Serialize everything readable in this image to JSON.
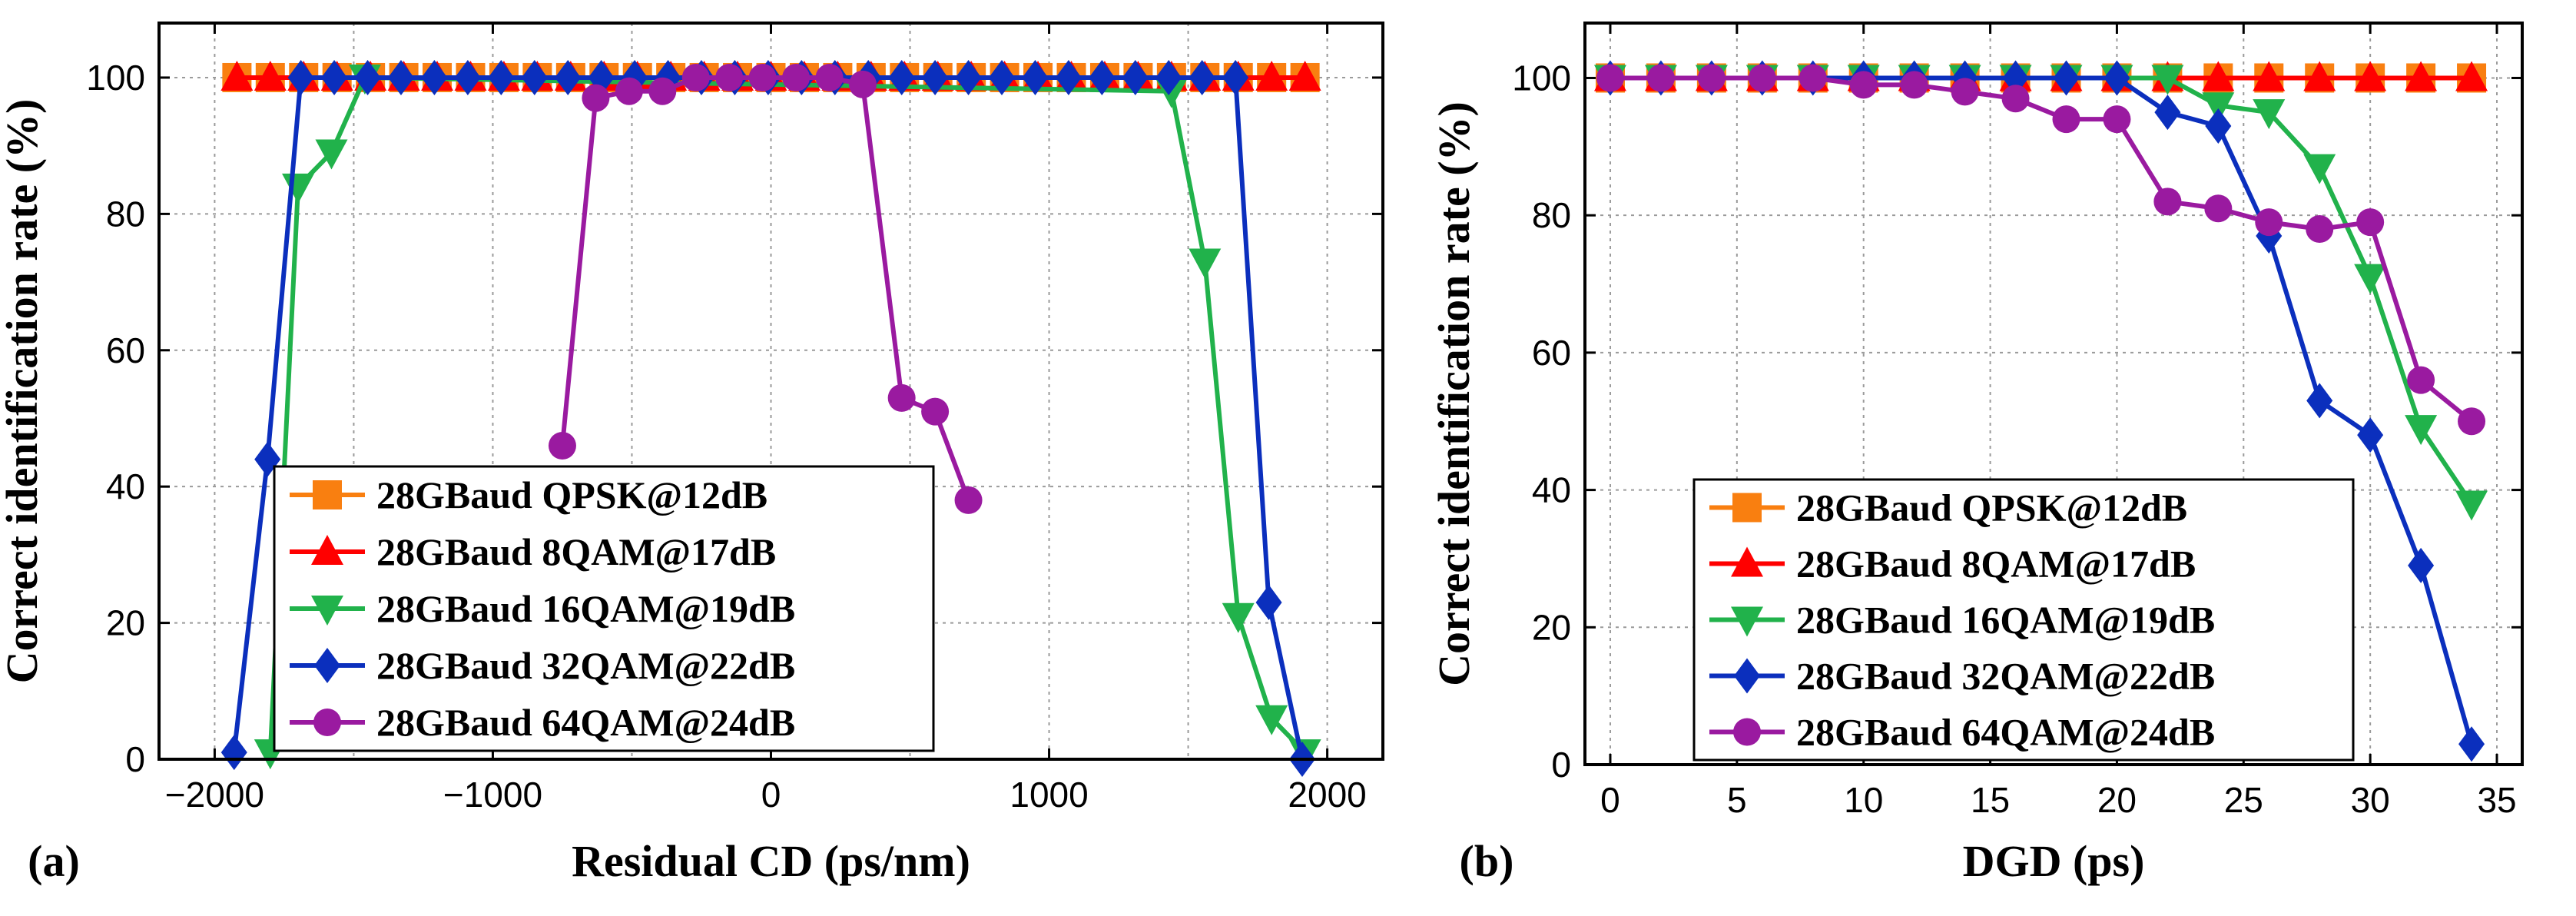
{
  "colors": {
    "qpsk": "#f97f10",
    "qam8": "#ff0000",
    "qam16": "#21b24b",
    "qam32": "#0b2fbd",
    "qam64": "#9a1aa0",
    "grid": "#9a9a9a",
    "axis": "#000000"
  },
  "chart_data": [
    {
      "type": "line",
      "panel_label": "(a)",
      "xlabel": "Residual CD (ps/nm)",
      "ylabel": "Correct identification rate (%)",
      "xlim": [
        -2200,
        2200
      ],
      "ylim": [
        0,
        108
      ],
      "xticks": [
        -2000,
        -1000,
        0,
        1000,
        2000
      ],
      "xtick_labels": [
        "−2000",
        "−1000",
        "0",
        "1000",
        "2000"
      ],
      "yticks": [
        0,
        20,
        40,
        60,
        80,
        100
      ],
      "ytick_labels": [
        "0",
        "20",
        "40",
        "60",
        "80",
        "100"
      ],
      "xgrid": [
        -2000,
        -1500,
        -1000,
        -500,
        0,
        500,
        1000,
        1500,
        2000
      ],
      "ygrid": [
        0,
        20,
        40,
        60,
        80,
        100
      ],
      "legend_position": "lower-left",
      "series": [
        {
          "name": "28GBaud QPSK@12dB",
          "color_key": "qpsk",
          "marker": "square",
          "x": [
            -1920,
            -1800,
            -1680,
            -1560,
            -1440,
            -1320,
            -1200,
            -1080,
            -960,
            -840,
            -720,
            -600,
            -480,
            -360,
            -240,
            -120,
            0,
            120,
            240,
            360,
            480,
            600,
            720,
            840,
            960,
            1080,
            1200,
            1320,
            1440,
            1560,
            1680,
            1800,
            1920
          ],
          "y": [
            100,
            100,
            100,
            100,
            100,
            100,
            100,
            100,
            100,
            100,
            100,
            100,
            100,
            100,
            100,
            100,
            100,
            100,
            100,
            100,
            100,
            100,
            100,
            100,
            100,
            100,
            100,
            100,
            100,
            100,
            100,
            100,
            100
          ]
        },
        {
          "name": "28GBaud 8QAM@17dB",
          "color_key": "qam8",
          "marker": "triangle-up",
          "x": [
            -1920,
            -1800,
            -1680,
            -1560,
            -1440,
            -1320,
            -1200,
            -1080,
            -960,
            -840,
            -720,
            -600,
            -480,
            -360,
            -240,
            -120,
            0,
            120,
            240,
            360,
            480,
            600,
            720,
            840,
            960,
            1080,
            1200,
            1320,
            1440,
            1560,
            1680,
            1800,
            1920
          ],
          "y": [
            100,
            100,
            100,
            100,
            100,
            100,
            100,
            100,
            100,
            100,
            100,
            100,
            100,
            100,
            100,
            100,
            100,
            100,
            100,
            100,
            100,
            100,
            100,
            100,
            100,
            100,
            100,
            100,
            100,
            100,
            100,
            100,
            100
          ]
        },
        {
          "name": "28GBaud 16QAM@19dB",
          "color_key": "qam16",
          "marker": "triangle-down",
          "x": [
            -1800,
            -1700,
            -1580,
            -1460,
            1440,
            1560,
            1680,
            1800,
            1920
          ],
          "y": [
            1,
            84,
            89,
            100,
            98,
            73,
            21,
            6,
            1
          ]
        },
        {
          "name": "28GBaud 32QAM@22dB",
          "color_key": "qam32",
          "marker": "diamond",
          "x": [
            -1930,
            -1810,
            -1690,
            -1570,
            -1450,
            -1330,
            -1210,
            -1090,
            -970,
            -850,
            -730,
            -610,
            -490,
            -370,
            -250,
            -130,
            -10,
            110,
            230,
            350,
            470,
            590,
            710,
            830,
            950,
            1070,
            1190,
            1310,
            1430,
            1550,
            1670,
            1790,
            1910
          ],
          "y": [
            1,
            44,
            100,
            100,
            100,
            100,
            100,
            100,
            100,
            100,
            100,
            100,
            100,
            100,
            100,
            100,
            100,
            100,
            100,
            100,
            100,
            100,
            100,
            100,
            100,
            100,
            100,
            100,
            100,
            100,
            100,
            23,
            0
          ]
        },
        {
          "name": "28GBaud 64QAM@24dB",
          "color_key": "qam64",
          "marker": "circle",
          "x": [
            -750,
            -630,
            -510,
            -390,
            -270,
            -150,
            -30,
            90,
            210,
            330,
            470,
            590,
            710
          ],
          "y": [
            46,
            97,
            98,
            98,
            100,
            100,
            100,
            100,
            100,
            99,
            53,
            51,
            38
          ]
        }
      ]
    },
    {
      "type": "line",
      "panel_label": "(b)",
      "xlabel": "DGD (ps)",
      "ylabel": "Correct identification rate (%)",
      "xlim": [
        -1,
        36
      ],
      "ylim": [
        0,
        108
      ],
      "xticks": [
        0,
        5,
        10,
        15,
        20,
        25,
        30,
        35
      ],
      "xtick_labels": [
        "0",
        "5",
        "10",
        "15",
        "20",
        "25",
        "30",
        "35"
      ],
      "yticks": [
        0,
        20,
        40,
        60,
        80,
        100
      ],
      "ytick_labels": [
        "0",
        "20",
        "40",
        "60",
        "80",
        "100"
      ],
      "xgrid": [
        0,
        5,
        10,
        15,
        20,
        25,
        30,
        35
      ],
      "ygrid": [
        0,
        20,
        40,
        60,
        80,
        100
      ],
      "legend_position": "lower-left",
      "series": [
        {
          "name": "28GBaud QPSK@12dB",
          "color_key": "qpsk",
          "marker": "square",
          "x": [
            0,
            2,
            4,
            6,
            8,
            10,
            12,
            14,
            16,
            18,
            20,
            22,
            24,
            26,
            28,
            30,
            32,
            34
          ],
          "y": [
            100,
            100,
            100,
            100,
            100,
            100,
            100,
            100,
            100,
            100,
            100,
            100,
            100,
            100,
            100,
            100,
            100,
            100
          ]
        },
        {
          "name": "28GBaud 8QAM@17dB",
          "color_key": "qam8",
          "marker": "triangle-up",
          "x": [
            0,
            2,
            4,
            6,
            8,
            10,
            12,
            14,
            16,
            18,
            20,
            22,
            24,
            26,
            28,
            30,
            32,
            34
          ],
          "y": [
            100,
            100,
            100,
            100,
            100,
            100,
            100,
            100,
            100,
            100,
            100,
            100,
            100,
            100,
            100,
            100,
            100,
            100
          ]
        },
        {
          "name": "28GBaud 16QAM@19dB",
          "color_key": "qam16",
          "marker": "triangle-down",
          "x": [
            0,
            2,
            4,
            6,
            8,
            10,
            12,
            14,
            16,
            18,
            20,
            22,
            24,
            26,
            28,
            30,
            32,
            34
          ],
          "y": [
            100,
            100,
            100,
            100,
            100,
            100,
            100,
            100,
            100,
            100,
            100,
            100,
            96,
            95,
            87,
            71,
            49,
            38
          ]
        },
        {
          "name": "28GBaud 32QAM@22dB",
          "color_key": "qam32",
          "marker": "diamond",
          "x": [
            0,
            2,
            4,
            6,
            8,
            10,
            12,
            14,
            16,
            18,
            20,
            22,
            24,
            26,
            28,
            30,
            32,
            34
          ],
          "y": [
            100,
            100,
            100,
            100,
            100,
            100,
            100,
            100,
            100,
            100,
            100,
            95,
            93,
            77,
            53,
            48,
            29,
            3
          ]
        },
        {
          "name": "28GBaud 64QAM@24dB",
          "color_key": "qam64",
          "marker": "circle",
          "x": [
            0,
            2,
            4,
            6,
            8,
            10,
            12,
            14,
            16,
            18,
            20,
            22,
            24,
            26,
            28,
            30,
            32,
            34
          ],
          "y": [
            100,
            100,
            100,
            100,
            100,
            99,
            99,
            98,
            97,
            94,
            94,
            82,
            81,
            79,
            78,
            79,
            56,
            50
          ]
        }
      ]
    }
  ]
}
